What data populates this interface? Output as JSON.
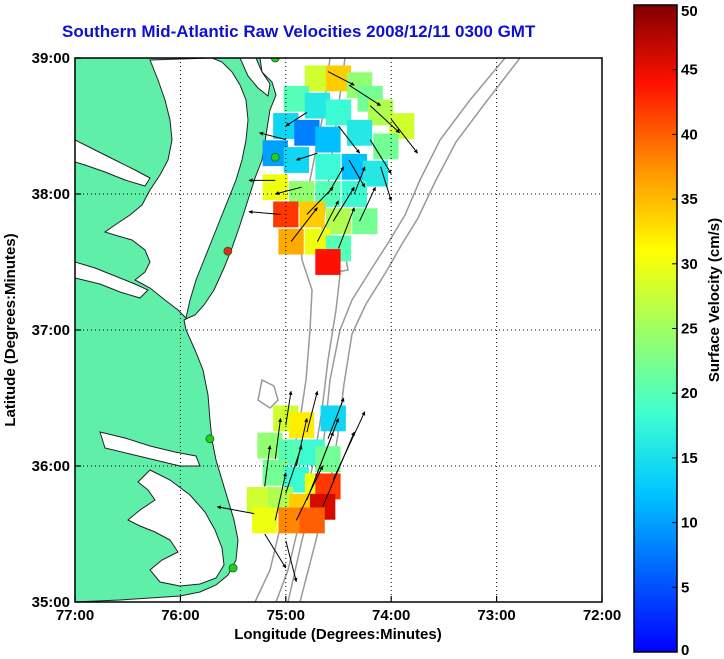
{
  "title": "Southern Mid-Atlantic Raw Velocities 2008/12/11 0300 GMT",
  "chart_data": {
    "type": "heatmap",
    "xlabel": "Longitude (Degrees:Minutes)",
    "ylabel": "Latitude (Degrees:Minutes)",
    "xlim": [
      -77,
      -72
    ],
    "ylim": [
      35,
      39
    ],
    "xticks": [
      {
        "v": -77,
        "label": "77:00"
      },
      {
        "v": -76,
        "label": "76:00"
      },
      {
        "v": -75,
        "label": "75:00"
      },
      {
        "v": -74,
        "label": "74:00"
      },
      {
        "v": -73,
        "label": "73:00"
      },
      {
        "v": -72,
        "label": "72:00"
      }
    ],
    "yticks": [
      {
        "v": 35,
        "label": "35:00"
      },
      {
        "v": 36,
        "label": "36:00"
      },
      {
        "v": 37,
        "label": "37:00"
      },
      {
        "v": 38,
        "label": "38:00"
      },
      {
        "v": 39,
        "label": "39:00"
      }
    ],
    "grid": true,
    "colorbar": {
      "label": "Surface Velocity (cm/s)",
      "min": 0,
      "max": 50,
      "ticks": [
        0,
        5,
        10,
        15,
        20,
        25,
        30,
        35,
        40,
        45,
        50
      ]
    },
    "regions": [
      {
        "name": "north",
        "cells": [
          {
            "lon": -74.7,
            "lat": 38.85,
            "v": 28
          },
          {
            "lon": -74.5,
            "lat": 38.85,
            "v": 34
          },
          {
            "lon": -74.3,
            "lat": 38.8,
            "v": 24
          },
          {
            "lon": -74.2,
            "lat": 38.7,
            "v": 22
          },
          {
            "lon": -74.9,
            "lat": 38.7,
            "v": 20
          },
          {
            "lon": -74.7,
            "lat": 38.65,
            "v": 16
          },
          {
            "lon": -74.5,
            "lat": 38.6,
            "v": 18
          },
          {
            "lon": -74.1,
            "lat": 38.6,
            "v": 26
          },
          {
            "lon": -73.9,
            "lat": 38.5,
            "v": 28
          },
          {
            "lon": -75.0,
            "lat": 38.5,
            "v": 14
          },
          {
            "lon": -74.8,
            "lat": 38.45,
            "v": 8
          },
          {
            "lon": -74.6,
            "lat": 38.4,
            "v": 12
          },
          {
            "lon": -74.3,
            "lat": 38.45,
            "v": 16
          },
          {
            "lon": -74.05,
            "lat": 38.35,
            "v": 22
          },
          {
            "lon": -75.1,
            "lat": 38.3,
            "v": 10
          },
          {
            "lon": -74.9,
            "lat": 38.25,
            "v": 14
          },
          {
            "lon": -74.6,
            "lat": 38.2,
            "v": 18
          },
          {
            "lon": -74.35,
            "lat": 38.2,
            "v": 12
          },
          {
            "lon": -74.15,
            "lat": 38.15,
            "v": 16
          },
          {
            "lon": -75.1,
            "lat": 38.05,
            "v": 30
          },
          {
            "lon": -74.85,
            "lat": 38.0,
            "v": 24
          },
          {
            "lon": -74.6,
            "lat": 38.0,
            "v": 20
          },
          {
            "lon": -74.35,
            "lat": 38.0,
            "v": 18
          },
          {
            "lon": -75.0,
            "lat": 37.85,
            "v": 42
          },
          {
            "lon": -74.75,
            "lat": 37.85,
            "v": 34
          },
          {
            "lon": -74.5,
            "lat": 37.8,
            "v": 26
          },
          {
            "lon": -74.25,
            "lat": 37.8,
            "v": 22
          },
          {
            "lon": -74.95,
            "lat": 37.65,
            "v": 36
          },
          {
            "lon": -74.7,
            "lat": 37.65,
            "v": 30
          },
          {
            "lon": -74.5,
            "lat": 37.6,
            "v": 20
          },
          {
            "lon": -74.6,
            "lat": 37.5,
            "v": 44
          }
        ]
      },
      {
        "name": "south",
        "cells": [
          {
            "lon": -75.0,
            "lat": 36.35,
            "v": 28
          },
          {
            "lon": -74.85,
            "lat": 36.3,
            "v": 32
          },
          {
            "lon": -74.55,
            "lat": 36.35,
            "v": 14
          },
          {
            "lon": -75.15,
            "lat": 36.15,
            "v": 24
          },
          {
            "lon": -74.95,
            "lat": 36.1,
            "v": 20
          },
          {
            "lon": -74.75,
            "lat": 36.1,
            "v": 18
          },
          {
            "lon": -74.6,
            "lat": 36.05,
            "v": 22
          },
          {
            "lon": -75.1,
            "lat": 35.95,
            "v": 22
          },
          {
            "lon": -74.9,
            "lat": 35.9,
            "v": 18
          },
          {
            "lon": -74.7,
            "lat": 35.85,
            "v": 30
          },
          {
            "lon": -74.6,
            "lat": 35.85,
            "v": 42
          },
          {
            "lon": -75.25,
            "lat": 35.75,
            "v": 28
          },
          {
            "lon": -75.05,
            "lat": 35.75,
            "v": 26
          },
          {
            "lon": -74.85,
            "lat": 35.7,
            "v": 34
          },
          {
            "lon": -74.65,
            "lat": 35.7,
            "v": 46
          },
          {
            "lon": -75.2,
            "lat": 35.6,
            "v": 30
          },
          {
            "lon": -74.95,
            "lat": 35.6,
            "v": 38
          },
          {
            "lon": -74.75,
            "lat": 35.6,
            "v": 40
          }
        ]
      }
    ],
    "vectors": [
      {
        "lon": -74.6,
        "lat": 38.9,
        "dx": 0.25,
        "dy": -0.1
      },
      {
        "lon": -74.4,
        "lat": 38.8,
        "dx": 0.3,
        "dy": -0.15
      },
      {
        "lon": -74.2,
        "lat": 38.65,
        "dx": 0.28,
        "dy": -0.2
      },
      {
        "lon": -74.0,
        "lat": 38.55,
        "dx": 0.25,
        "dy": -0.25
      },
      {
        "lon": -74.8,
        "lat": 38.6,
        "dx": -0.2,
        "dy": -0.1
      },
      {
        "lon": -74.5,
        "lat": 38.5,
        "dx": 0.2,
        "dy": -0.2
      },
      {
        "lon": -74.2,
        "lat": 38.4,
        "dx": 0.2,
        "dy": -0.25
      },
      {
        "lon": -75.0,
        "lat": 38.4,
        "dx": -0.25,
        "dy": 0.05
      },
      {
        "lon": -74.7,
        "lat": 38.3,
        "dx": -0.2,
        "dy": -0.05
      },
      {
        "lon": -74.4,
        "lat": 38.25,
        "dx": 0.15,
        "dy": -0.2
      },
      {
        "lon": -74.1,
        "lat": 38.2,
        "dx": 0.1,
        "dy": -0.25
      },
      {
        "lon": -75.1,
        "lat": 38.1,
        "dx": -0.25,
        "dy": 0.0
      },
      {
        "lon": -74.85,
        "lat": 38.05,
        "dx": -0.25,
        "dy": -0.05
      },
      {
        "lon": -74.6,
        "lat": 38.0,
        "dx": 0.15,
        "dy": 0.2
      },
      {
        "lon": -74.35,
        "lat": 38.0,
        "dx": 0.1,
        "dy": 0.2
      },
      {
        "lon": -75.05,
        "lat": 37.85,
        "dx": -0.3,
        "dy": 0.02
      },
      {
        "lon": -74.8,
        "lat": 37.85,
        "dx": 0.25,
        "dy": 0.2
      },
      {
        "lon": -74.55,
        "lat": 37.8,
        "dx": 0.2,
        "dy": 0.25
      },
      {
        "lon": -74.3,
        "lat": 37.8,
        "dx": 0.15,
        "dy": 0.25
      },
      {
        "lon": -74.95,
        "lat": 37.65,
        "dx": 0.25,
        "dy": 0.25
      },
      {
        "lon": -74.7,
        "lat": 37.65,
        "dx": 0.2,
        "dy": 0.3
      },
      {
        "lon": -74.5,
        "lat": 37.6,
        "dx": 0.15,
        "dy": 0.3
      },
      {
        "lon": -75.0,
        "lat": 36.3,
        "dx": 0.05,
        "dy": 0.25
      },
      {
        "lon": -74.8,
        "lat": 36.25,
        "dx": 0.1,
        "dy": 0.3
      },
      {
        "lon": -74.6,
        "lat": 36.2,
        "dx": 0.15,
        "dy": 0.3
      },
      {
        "lon": -75.1,
        "lat": 36.05,
        "dx": 0.05,
        "dy": 0.3
      },
      {
        "lon": -74.9,
        "lat": 36.0,
        "dx": 0.1,
        "dy": 0.35
      },
      {
        "lon": -74.7,
        "lat": 35.95,
        "dx": 0.2,
        "dy": 0.4
      },
      {
        "lon": -74.55,
        "lat": 35.9,
        "dx": 0.3,
        "dy": 0.5
      },
      {
        "lon": -75.2,
        "lat": 35.85,
        "dx": 0.05,
        "dy": 0.3
      },
      {
        "lon": -75.0,
        "lat": 35.8,
        "dx": 0.15,
        "dy": 0.35
      },
      {
        "lon": -74.8,
        "lat": 35.75,
        "dx": 0.25,
        "dy": 0.5
      },
      {
        "lon": -74.65,
        "lat": 35.7,
        "dx": 0.3,
        "dy": 0.55
      },
      {
        "lon": -75.3,
        "lat": 35.65,
        "dx": -0.35,
        "dy": 0.05
      },
      {
        "lon": -75.1,
        "lat": 35.6,
        "dx": 0.1,
        "dy": 0.35
      },
      {
        "lon": -74.9,
        "lat": 35.6,
        "dx": 0.25,
        "dy": 0.4
      },
      {
        "lon": -75.2,
        "lat": 35.5,
        "dx": 0.2,
        "dy": -0.25
      },
      {
        "lon": -75.0,
        "lat": 35.45,
        "dx": 0.1,
        "dy": -0.3
      }
    ],
    "sites": [
      {
        "lon": -75.1,
        "lat": 39.0,
        "color": "#22cc22"
      },
      {
        "lon": -75.1,
        "lat": 38.27,
        "color": "#22cc22"
      },
      {
        "lon": -75.55,
        "lat": 37.58,
        "color": "#ee2222"
      },
      {
        "lon": -75.72,
        "lat": 36.2,
        "color": "#22cc22"
      },
      {
        "lon": -75.5,
        "lat": 35.25,
        "color": "#22cc22"
      }
    ],
    "colors": {
      "land": "#5fefa8",
      "water": "#ffffff",
      "coastline": "#222222",
      "bathymetry": "#999999"
    }
  }
}
